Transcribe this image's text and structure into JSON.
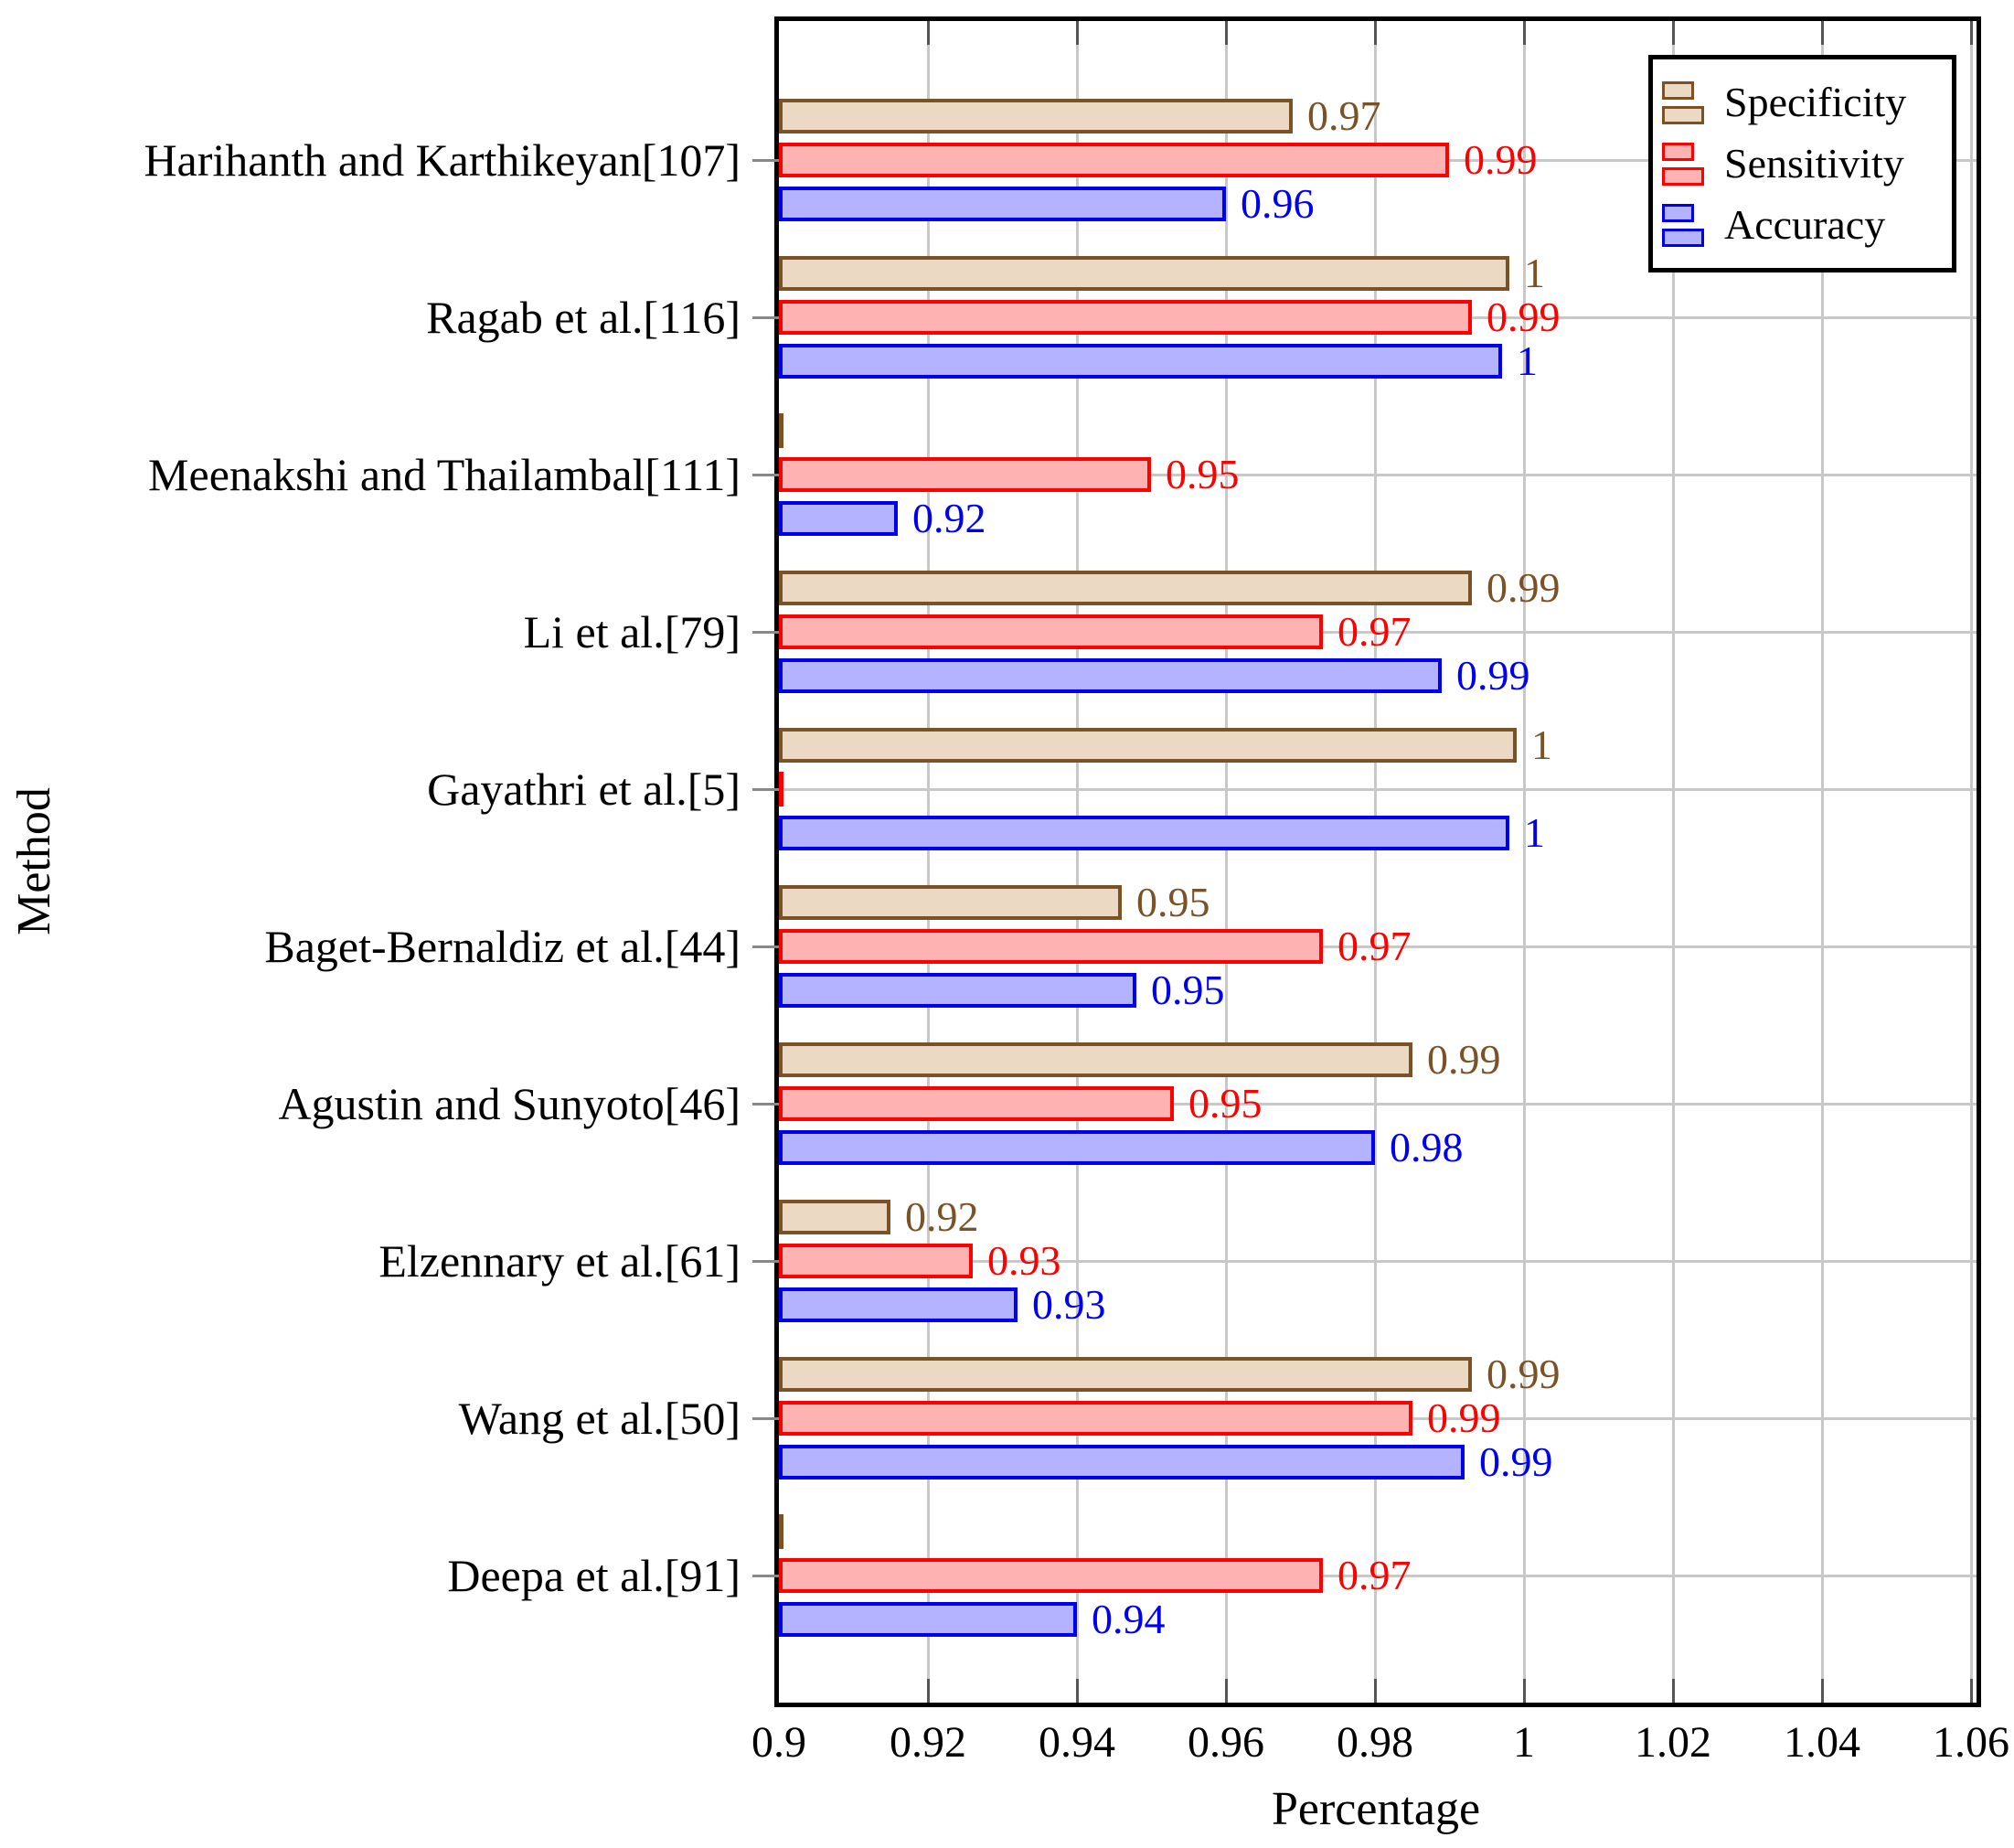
{
  "axes": {
    "x_label": "Percentage",
    "y_label": "Method",
    "x_ticks": [
      "0.9",
      "0.92",
      "0.94",
      "0.96",
      "0.98",
      "1",
      "1.02",
      "1.04",
      "1.06"
    ],
    "x_min": 0.9,
    "x_max": 1.06,
    "grid_step": 0.02
  },
  "legend": {
    "entries": [
      {
        "label": "Specificity",
        "series": "specificity"
      },
      {
        "label": "Sensitivity",
        "series": "sensitivity"
      },
      {
        "label": "Accuracy",
        "series": "accuracy"
      }
    ]
  },
  "colors": {
    "specificity_fill": "#ebd9c3",
    "specificity_border": "#7a5226",
    "sensitivity_fill": "#ffb2b2",
    "sensitivity_border": "#ff0000",
    "accuracy_fill": "#b3b3ff",
    "accuracy_border": "#0000f0",
    "grid": "#c8c8c8",
    "x_tick_mark": "#555555",
    "y_tick_mark": "#888888",
    "axis": "#000000"
  },
  "chart_data": {
    "type": "bar",
    "orientation": "horizontal",
    "title": "",
    "xlabel": "Percentage",
    "ylabel": "Method",
    "xlim": [
      0.9,
      1.06
    ],
    "grid": "both",
    "legend_position": "top-right",
    "categories": [
      "Harihanth and Karthikeyan[107]",
      "Ragab et al.[116]",
      "Meenakshi and Thailambal[111]",
      "Li et al.[79]",
      "Gayathri et al.[5]",
      "Baget-Bernaldiz et al.[44]",
      "Agustin and Sunyoto[46]",
      "Elzennary et al.[61]",
      "Wang et al.[50]",
      "Deepa et al.[91]"
    ],
    "series": [
      {
        "name": "Specificity",
        "key": "specificity",
        "values": [
          0.97,
          1,
          0.9,
          0.99,
          1,
          0.95,
          0.99,
          0.92,
          0.99,
          0.9
        ],
        "display": [
          "0.97",
          "1",
          "",
          "0.99",
          "1",
          "0.95",
          "0.99",
          "0.92",
          "0.99",
          ""
        ],
        "bar_values": [
          0.969,
          0.998,
          0.9,
          0.993,
          0.999,
          0.946,
          0.985,
          0.915,
          0.993,
          0.9
        ]
      },
      {
        "name": "Sensitivity",
        "key": "sensitivity",
        "values": [
          0.99,
          0.99,
          0.95,
          0.97,
          0.9,
          0.97,
          0.95,
          0.93,
          0.99,
          0.97
        ],
        "display": [
          "0.99",
          "0.99",
          "0.95",
          "0.97",
          "",
          "0.97",
          "0.95",
          "0.93",
          "0.99",
          "0.97"
        ],
        "bar_values": [
          0.99,
          0.993,
          0.95,
          0.973,
          0.9,
          0.973,
          0.953,
          0.926,
          0.985,
          0.973
        ]
      },
      {
        "name": "Accuracy",
        "key": "accuracy",
        "values": [
          0.96,
          1,
          0.92,
          0.99,
          1,
          0.95,
          0.98,
          0.93,
          0.99,
          0.94
        ],
        "display": [
          "0.96",
          "1",
          "0.92",
          "0.99",
          "1",
          "0.95",
          "0.98",
          "0.93",
          "0.99",
          "0.94"
        ],
        "bar_values": [
          0.96,
          0.997,
          0.916,
          0.989,
          0.998,
          0.948,
          0.98,
          0.932,
          0.992,
          0.94
        ]
      }
    ]
  }
}
